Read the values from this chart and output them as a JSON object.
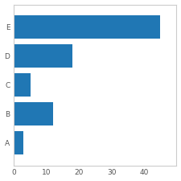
{
  "categories": [
    "A",
    "B",
    "C",
    "D",
    "E"
  ],
  "values": [
    3,
    12,
    5,
    18,
    45
  ],
  "bar_color": "#2077b4",
  "xlim": [
    0,
    50
  ],
  "xticks": [
    0,
    10,
    20,
    30,
    40
  ],
  "background_color": "#ffffff",
  "figsize": [
    2.25,
    2.25
  ],
  "dpi": 100
}
